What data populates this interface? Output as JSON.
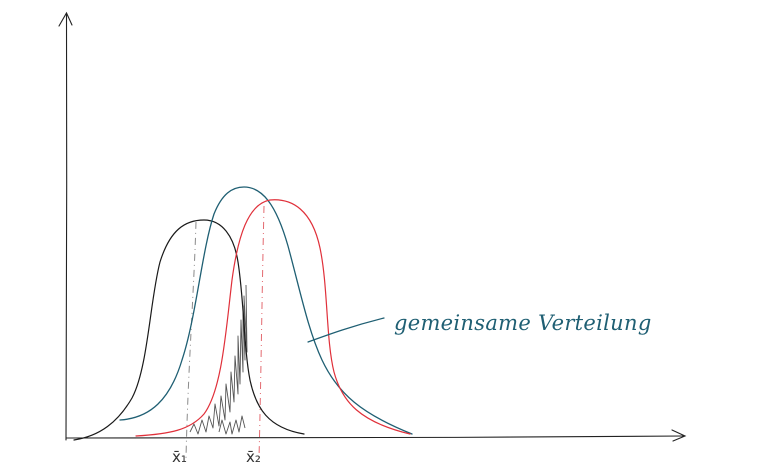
{
  "diagram": {
    "annotation": "gemeinsame Verteilung",
    "marker_left": "x̄₁",
    "marker_right": "x̄₂",
    "colors": {
      "axes": "#222222",
      "curve_black": "#1a1a1a",
      "curve_teal": "#1f5f73",
      "curve_red": "#e0303a",
      "dashed_black": "#888888",
      "dashed_red": "#e36a70",
      "hatch": "#555555",
      "annotation": "#1f5f73"
    }
  }
}
